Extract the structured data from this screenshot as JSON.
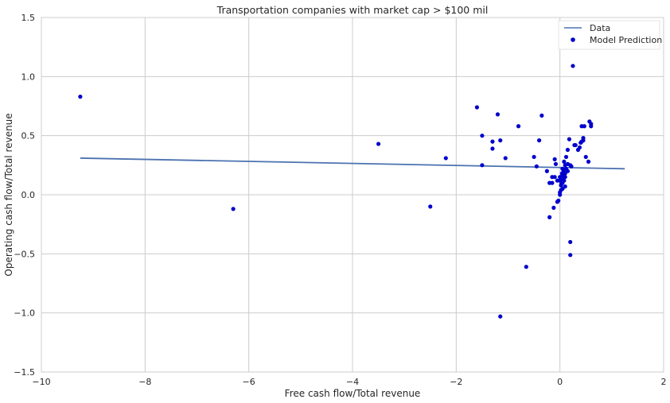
{
  "chart_data": {
    "type": "scatter",
    "title": "Transportation companies with market cap > $100 mil",
    "xlabel": "Free cash flow/Total revenue",
    "ylabel": "Operating cash flow/Total revenue",
    "xlim": [
      -10,
      2
    ],
    "ylim": [
      -1.5,
      1.5
    ],
    "xticks": [
      "−10",
      "−8",
      "−6",
      "−4",
      "−2",
      "0",
      "2"
    ],
    "yticks": [
      "−1.5",
      "−1.0",
      "−0.5",
      "0.0",
      "0.5",
      "1.0",
      "1.5"
    ],
    "grid": true,
    "legend_position": "top-right",
    "line_series": {
      "name": "Data",
      "color": "#4c72b0",
      "x": [
        -9.25,
        1.25
      ],
      "y": [
        0.31,
        0.22
      ]
    },
    "scatter_series": {
      "name": "Model Prediction",
      "color": "#0000cc",
      "x": [
        -9.25,
        -6.3,
        -3.5,
        -2.5,
        -2.2,
        -1.6,
        -1.5,
        -1.5,
        -1.3,
        -1.3,
        -1.2,
        -1.15,
        -1.15,
        -1.05,
        -0.8,
        -0.65,
        -0.5,
        -0.45,
        -0.4,
        -0.35,
        -0.25,
        -0.2,
        -0.2,
        -0.15,
        -0.15,
        -0.12,
        -0.1,
        -0.1,
        -0.08,
        -0.05,
        -0.03,
        0.0,
        0.0,
        0.0,
        0.02,
        0.02,
        0.03,
        0.04,
        0.05,
        0.05,
        0.05,
        0.06,
        0.07,
        0.08,
        0.08,
        0.1,
        0.1,
        0.1,
        0.12,
        0.12,
        0.15,
        0.15,
        0.18,
        0.2,
        0.2,
        0.2,
        0.22,
        0.25,
        0.28,
        0.3,
        0.35,
        0.38,
        0.4,
        0.42,
        0.42,
        0.45,
        0.45,
        0.47,
        0.5,
        0.55,
        0.57,
        0.6,
        0.6,
        0.0,
        0.03,
        0.05,
        -0.05,
        0.1,
        0.15
      ],
      "y": [
        0.83,
        -0.12,
        0.43,
        -0.1,
        0.31,
        0.74,
        0.5,
        0.25,
        0.45,
        0.39,
        0.68,
        0.46,
        -1.03,
        0.31,
        0.58,
        -0.61,
        0.32,
        0.24,
        0.46,
        0.67,
        0.2,
        -0.19,
        0.1,
        0.15,
        0.1,
        -0.11,
        0.3,
        0.15,
        0.26,
        -0.06,
        -0.05,
        0.0,
        0.02,
        0.12,
        0.04,
        0.08,
        0.13,
        0.18,
        0.05,
        0.1,
        0.22,
        0.15,
        0.2,
        0.28,
        0.12,
        0.25,
        0.15,
        0.18,
        0.22,
        0.32,
        0.26,
        0.38,
        0.47,
        0.25,
        -0.4,
        -0.51,
        0.24,
        1.09,
        0.42,
        0.42,
        0.38,
        0.4,
        0.44,
        0.45,
        0.58,
        0.46,
        0.48,
        0.58,
        0.32,
        0.28,
        0.62,
        0.58,
        0.6,
        0.15,
        0.1,
        0.17,
        0.12,
        0.07,
        0.2
      ]
    }
  }
}
